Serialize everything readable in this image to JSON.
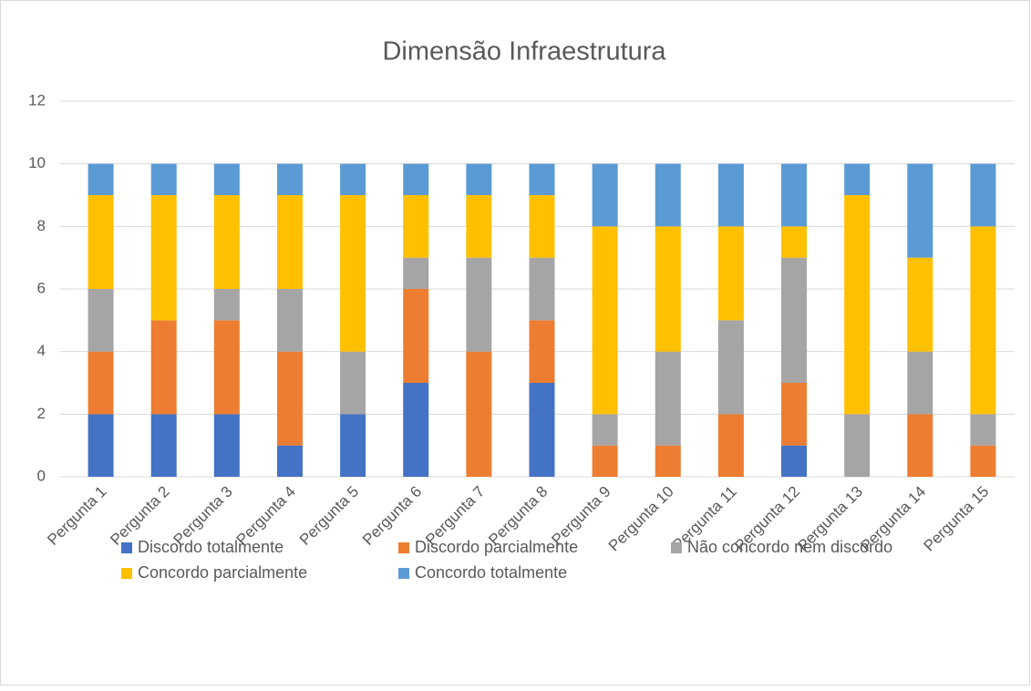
{
  "chart_data": {
    "type": "stacked_bar",
    "title": "Dimensão Infraestrutura",
    "categories": [
      "Pergunta 1",
      "Pergunta 2",
      "Pergunta 3",
      "Pergunta 4",
      "Pergunta 5",
      "Pergunta 6",
      "Pergunta 7",
      "Pergunta 8",
      "Pergunta 9",
      "Pergunta 10",
      "Pergunta 11",
      "Pergunta 12",
      "Pergunta 13",
      "Pergunta 14",
      "Pergunta 15"
    ],
    "series": [
      {
        "name": "Discordo totalmente",
        "color": "#4472c4",
        "values": [
          2,
          2,
          2,
          1,
          2,
          3,
          0,
          3,
          0,
          0,
          0,
          1,
          0,
          0,
          0
        ]
      },
      {
        "name": "Discordo parcialmente",
        "color": "#ed7d31",
        "values": [
          2,
          3,
          3,
          3,
          0,
          3,
          4,
          2,
          1,
          1,
          2,
          2,
          0,
          2,
          1
        ]
      },
      {
        "name": "Não concordo nem discordo",
        "color": "#a5a5a5",
        "values": [
          2,
          0,
          1,
          2,
          2,
          1,
          3,
          2,
          1,
          3,
          3,
          4,
          2,
          2,
          1
        ]
      },
      {
        "name": "Concordo parcialmente",
        "color": "#ffc000",
        "values": [
          3,
          4,
          3,
          3,
          5,
          2,
          2,
          2,
          6,
          4,
          3,
          1,
          7,
          3,
          6
        ]
      },
      {
        "name": "Concordo totalmente",
        "color": "#5b9bd5",
        "values": [
          1,
          1,
          1,
          1,
          1,
          1,
          1,
          1,
          2,
          2,
          2,
          2,
          1,
          3,
          2
        ]
      }
    ],
    "ylim": [
      0,
      12
    ],
    "yticks": [
      0,
      2,
      4,
      6,
      8,
      10,
      12
    ],
    "grid": true,
    "legend": "bottom"
  }
}
